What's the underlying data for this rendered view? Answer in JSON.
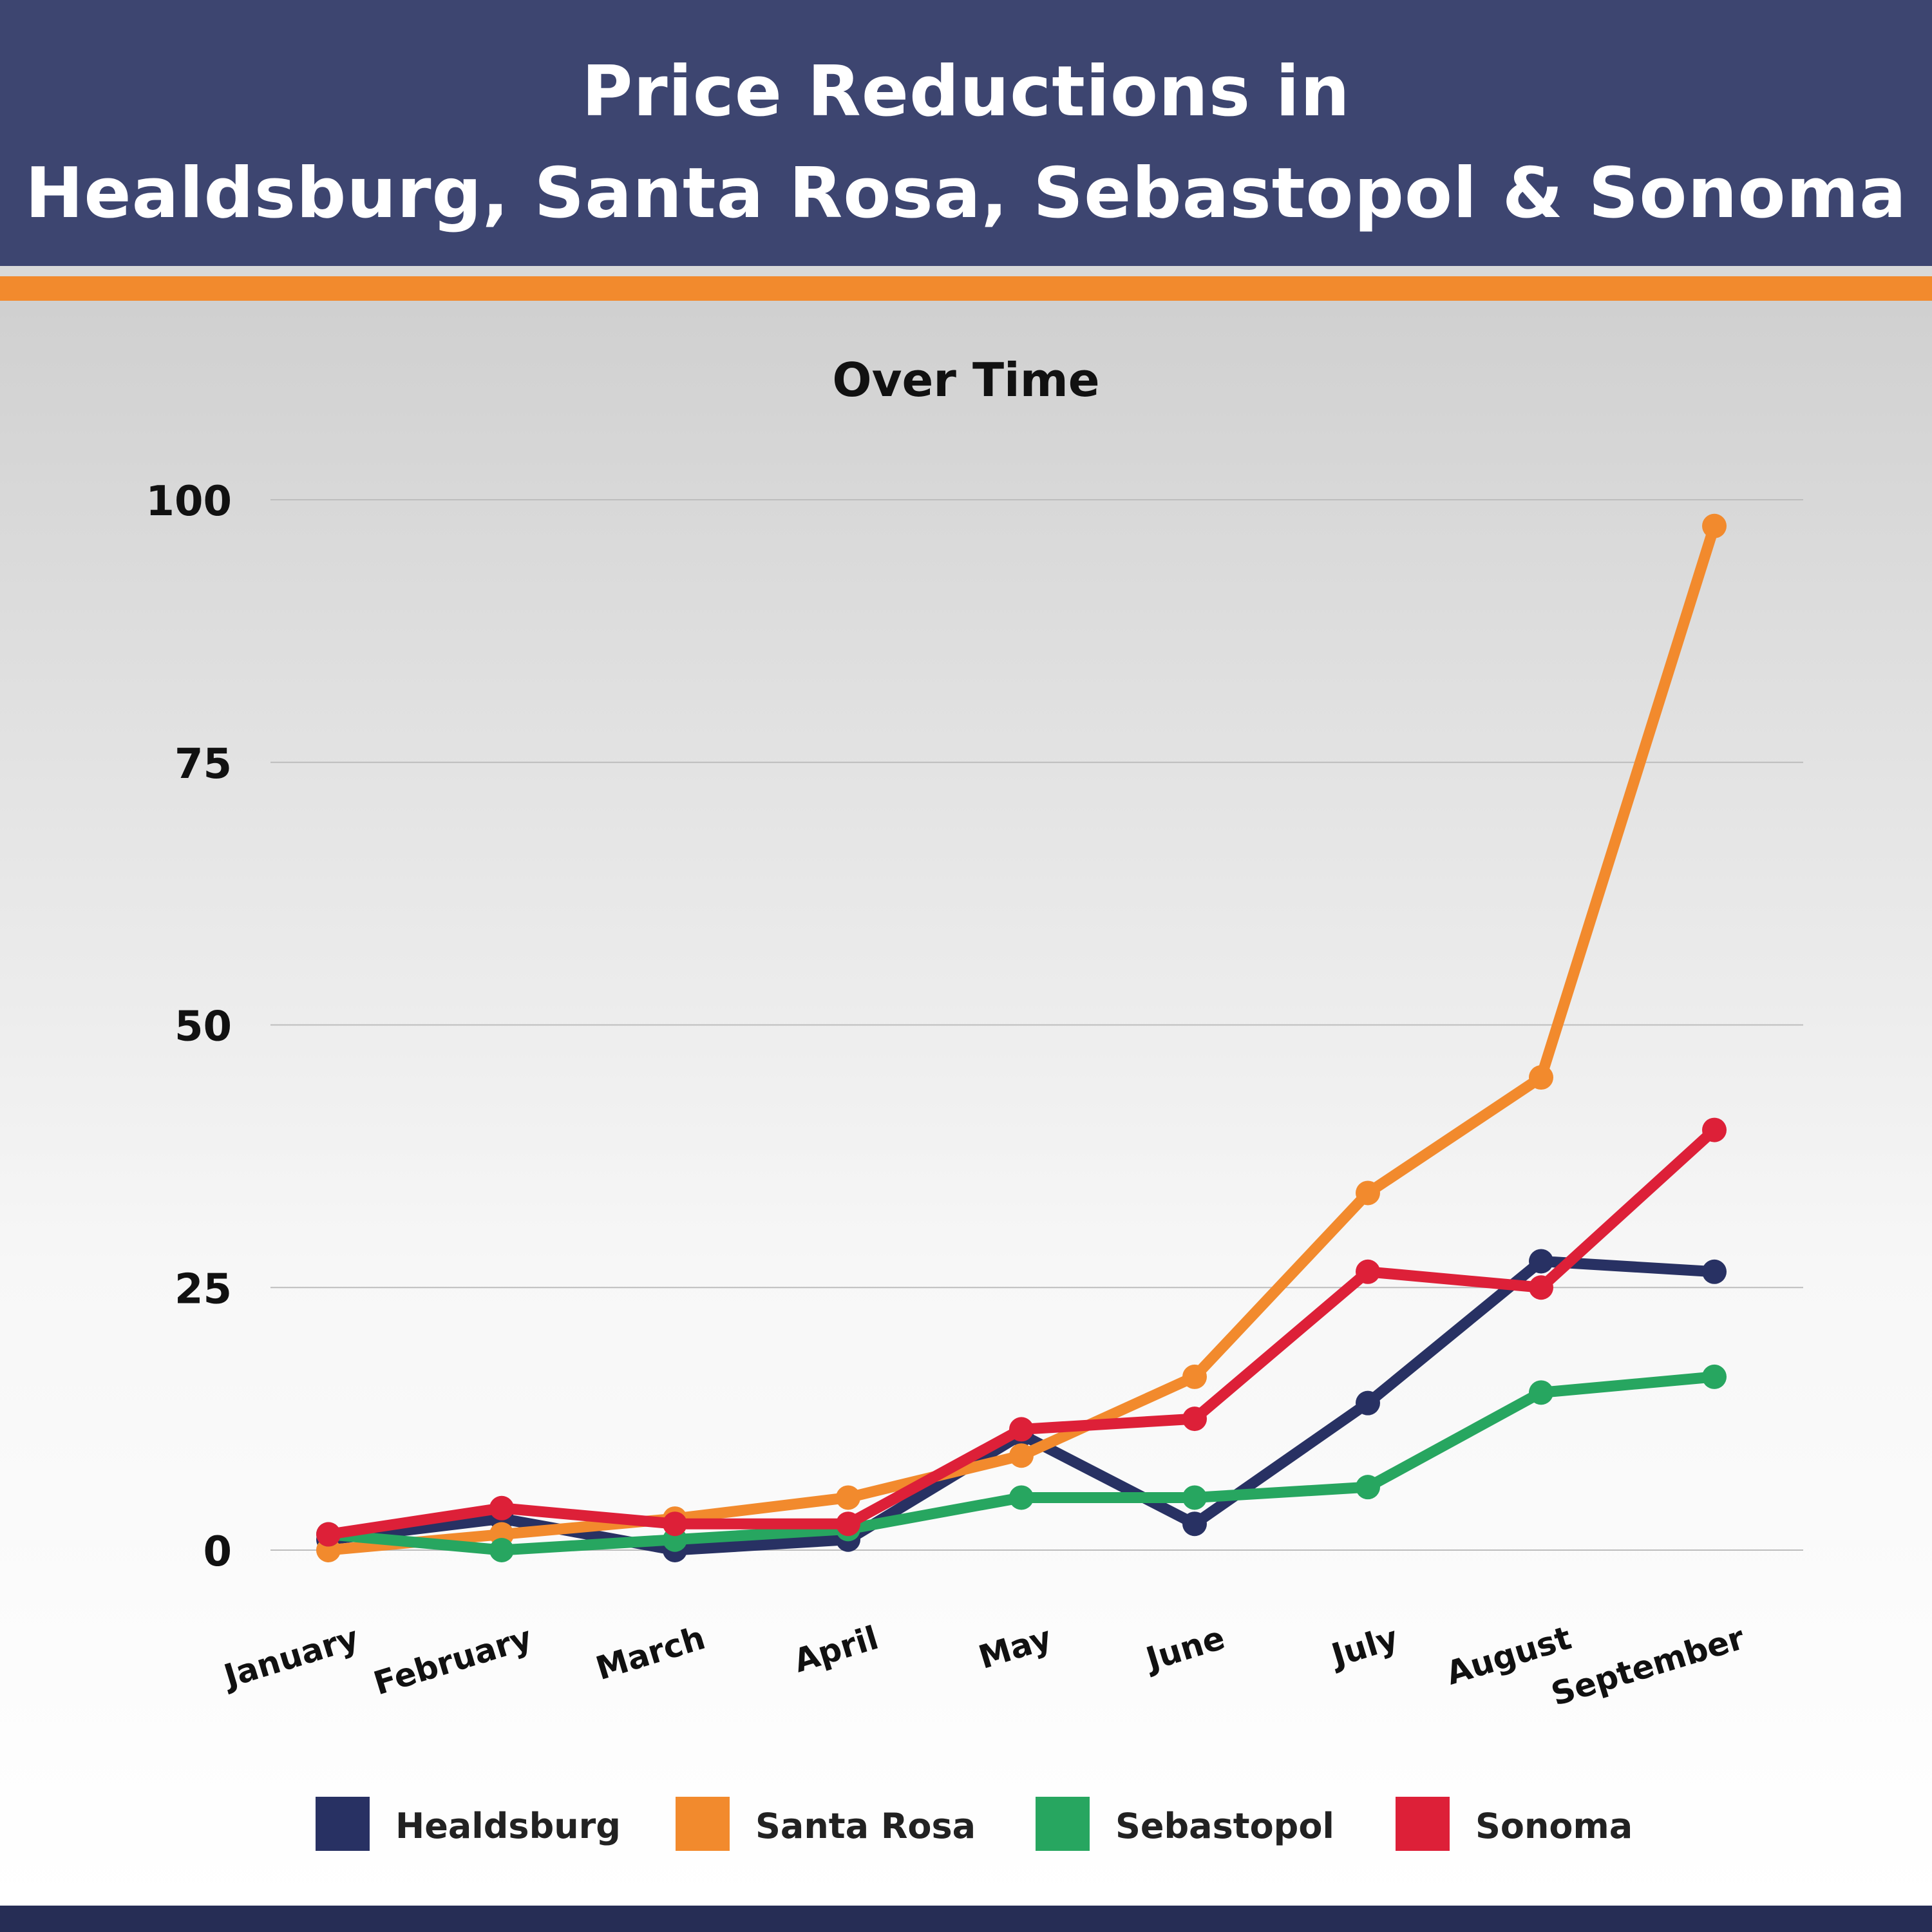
{
  "header": {
    "title_line_1": "Price Reductions in",
    "title_line_2": "Healdsburg, Santa Rosa, Sebastopol & Sonoma"
  },
  "colors": {
    "header_bg": "#3d4570",
    "accent_orange": "#f28a2d",
    "footer_bg": "#262d55"
  },
  "chart_data": {
    "type": "line",
    "title": "Over Time",
    "xlabel": "",
    "ylabel": "",
    "ylim": [
      0,
      100
    ],
    "yticks": [
      "0",
      "25",
      "50",
      "75",
      "100"
    ],
    "ytick_values": [
      0,
      25,
      50,
      75,
      100
    ],
    "grid": true,
    "legend_position": "bottom",
    "categories": [
      "January",
      "February",
      "March",
      "April",
      "May",
      "June",
      "July",
      "August",
      "September"
    ],
    "series": [
      {
        "name": "Healdsburg",
        "color": "#283163",
        "values": [
          1,
          3,
          0,
          1,
          11,
          2.5,
          14,
          27.5,
          26.5
        ]
      },
      {
        "name": "Santa Rosa",
        "color": "#f28a2d",
        "values": [
          0,
          1.5,
          3,
          5,
          9,
          16.5,
          34,
          45,
          97.5
        ]
      },
      {
        "name": "Sebastopol",
        "color": "#27a660",
        "values": [
          1.5,
          0,
          1,
          2,
          5,
          5,
          6,
          15,
          16.5
        ]
      },
      {
        "name": "Sonoma",
        "color": "#dd2038",
        "values": [
          1.5,
          4,
          2.5,
          2.5,
          11.5,
          12.5,
          26.5,
          25,
          40
        ]
      }
    ]
  }
}
